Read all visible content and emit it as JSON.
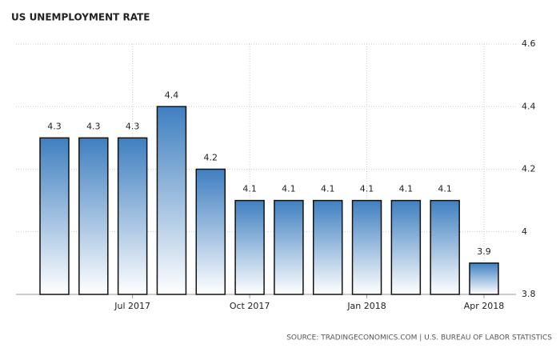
{
  "chart_data": {
    "type": "bar",
    "title": "US UNEMPLOYMENT RATE",
    "source": "SOURCE: TRADINGECONOMICS.COM | U.S. BUREAU OF LABOR STATISTICS",
    "categories": [
      null,
      null,
      "Jul 2017",
      null,
      null,
      "Oct 2017",
      null,
      null,
      "Jan 2018",
      null,
      null,
      "Apr 2018"
    ],
    "values": [
      4.3,
      4.3,
      4.3,
      4.4,
      4.2,
      4.1,
      4.1,
      4.1,
      4.1,
      4.1,
      4.1,
      3.9
    ],
    "color": "#3f7fc0",
    "ylim": [
      3.8,
      4.6
    ],
    "yticks": [
      3.8,
      4,
      4.2,
      4.4,
      4.6
    ],
    "grid": true
  }
}
